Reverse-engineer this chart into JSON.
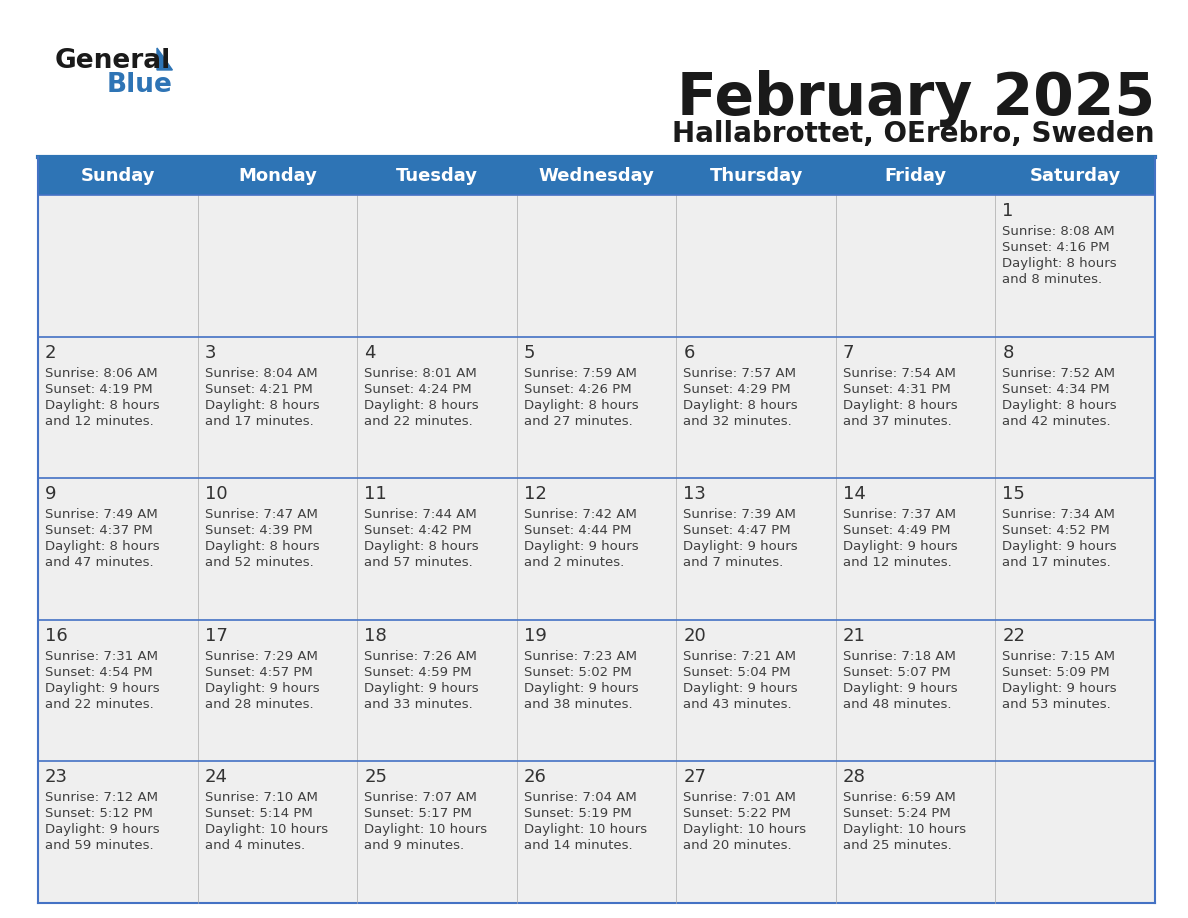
{
  "title": "February 2025",
  "subtitle": "Hallabrottet, OErebro, Sweden",
  "days_of_week": [
    "Sunday",
    "Monday",
    "Tuesday",
    "Wednesday",
    "Thursday",
    "Friday",
    "Saturday"
  ],
  "header_bg": "#2E74B5",
  "header_text_color": "#FFFFFF",
  "cell_bg": "#EFEFEF",
  "separator_color": "#2E74B5",
  "row_line_color": "#4472C4",
  "text_color": "#404040",
  "day_num_color": "#333333",
  "title_color": "#1a1a1a",
  "calendar_data": [
    [
      null,
      null,
      null,
      null,
      null,
      null,
      {
        "day": "1",
        "sunrise": "8:08 AM",
        "sunset": "4:16 PM",
        "daylight": "8 hours\nand 8 minutes."
      }
    ],
    [
      {
        "day": "2",
        "sunrise": "8:06 AM",
        "sunset": "4:19 PM",
        "daylight": "8 hours\nand 12 minutes."
      },
      {
        "day": "3",
        "sunrise": "8:04 AM",
        "sunset": "4:21 PM",
        "daylight": "8 hours\nand 17 minutes."
      },
      {
        "day": "4",
        "sunrise": "8:01 AM",
        "sunset": "4:24 PM",
        "daylight": "8 hours\nand 22 minutes."
      },
      {
        "day": "5",
        "sunrise": "7:59 AM",
        "sunset": "4:26 PM",
        "daylight": "8 hours\nand 27 minutes."
      },
      {
        "day": "6",
        "sunrise": "7:57 AM",
        "sunset": "4:29 PM",
        "daylight": "8 hours\nand 32 minutes."
      },
      {
        "day": "7",
        "sunrise": "7:54 AM",
        "sunset": "4:31 PM",
        "daylight": "8 hours\nand 37 minutes."
      },
      {
        "day": "8",
        "sunrise": "7:52 AM",
        "sunset": "4:34 PM",
        "daylight": "8 hours\nand 42 minutes."
      }
    ],
    [
      {
        "day": "9",
        "sunrise": "7:49 AM",
        "sunset": "4:37 PM",
        "daylight": "8 hours\nand 47 minutes."
      },
      {
        "day": "10",
        "sunrise": "7:47 AM",
        "sunset": "4:39 PM",
        "daylight": "8 hours\nand 52 minutes."
      },
      {
        "day": "11",
        "sunrise": "7:44 AM",
        "sunset": "4:42 PM",
        "daylight": "8 hours\nand 57 minutes."
      },
      {
        "day": "12",
        "sunrise": "7:42 AM",
        "sunset": "4:44 PM",
        "daylight": "9 hours\nand 2 minutes."
      },
      {
        "day": "13",
        "sunrise": "7:39 AM",
        "sunset": "4:47 PM",
        "daylight": "9 hours\nand 7 minutes."
      },
      {
        "day": "14",
        "sunrise": "7:37 AM",
        "sunset": "4:49 PM",
        "daylight": "9 hours\nand 12 minutes."
      },
      {
        "day": "15",
        "sunrise": "7:34 AM",
        "sunset": "4:52 PM",
        "daylight": "9 hours\nand 17 minutes."
      }
    ],
    [
      {
        "day": "16",
        "sunrise": "7:31 AM",
        "sunset": "4:54 PM",
        "daylight": "9 hours\nand 22 minutes."
      },
      {
        "day": "17",
        "sunrise": "7:29 AM",
        "sunset": "4:57 PM",
        "daylight": "9 hours\nand 28 minutes."
      },
      {
        "day": "18",
        "sunrise": "7:26 AM",
        "sunset": "4:59 PM",
        "daylight": "9 hours\nand 33 minutes."
      },
      {
        "day": "19",
        "sunrise": "7:23 AM",
        "sunset": "5:02 PM",
        "daylight": "9 hours\nand 38 minutes."
      },
      {
        "day": "20",
        "sunrise": "7:21 AM",
        "sunset": "5:04 PM",
        "daylight": "9 hours\nand 43 minutes."
      },
      {
        "day": "21",
        "sunrise": "7:18 AM",
        "sunset": "5:07 PM",
        "daylight": "9 hours\nand 48 minutes."
      },
      {
        "day": "22",
        "sunrise": "7:15 AM",
        "sunset": "5:09 PM",
        "daylight": "9 hours\nand 53 minutes."
      }
    ],
    [
      {
        "day": "23",
        "sunrise": "7:12 AM",
        "sunset": "5:12 PM",
        "daylight": "9 hours\nand 59 minutes."
      },
      {
        "day": "24",
        "sunrise": "7:10 AM",
        "sunset": "5:14 PM",
        "daylight": "10 hours\nand 4 minutes."
      },
      {
        "day": "25",
        "sunrise": "7:07 AM",
        "sunset": "5:17 PM",
        "daylight": "10 hours\nand 9 minutes."
      },
      {
        "day": "26",
        "sunrise": "7:04 AM",
        "sunset": "5:19 PM",
        "daylight": "10 hours\nand 14 minutes."
      },
      {
        "day": "27",
        "sunrise": "7:01 AM",
        "sunset": "5:22 PM",
        "daylight": "10 hours\nand 20 minutes."
      },
      {
        "day": "28",
        "sunrise": "6:59 AM",
        "sunset": "5:24 PM",
        "daylight": "10 hours\nand 25 minutes."
      },
      null
    ]
  ]
}
